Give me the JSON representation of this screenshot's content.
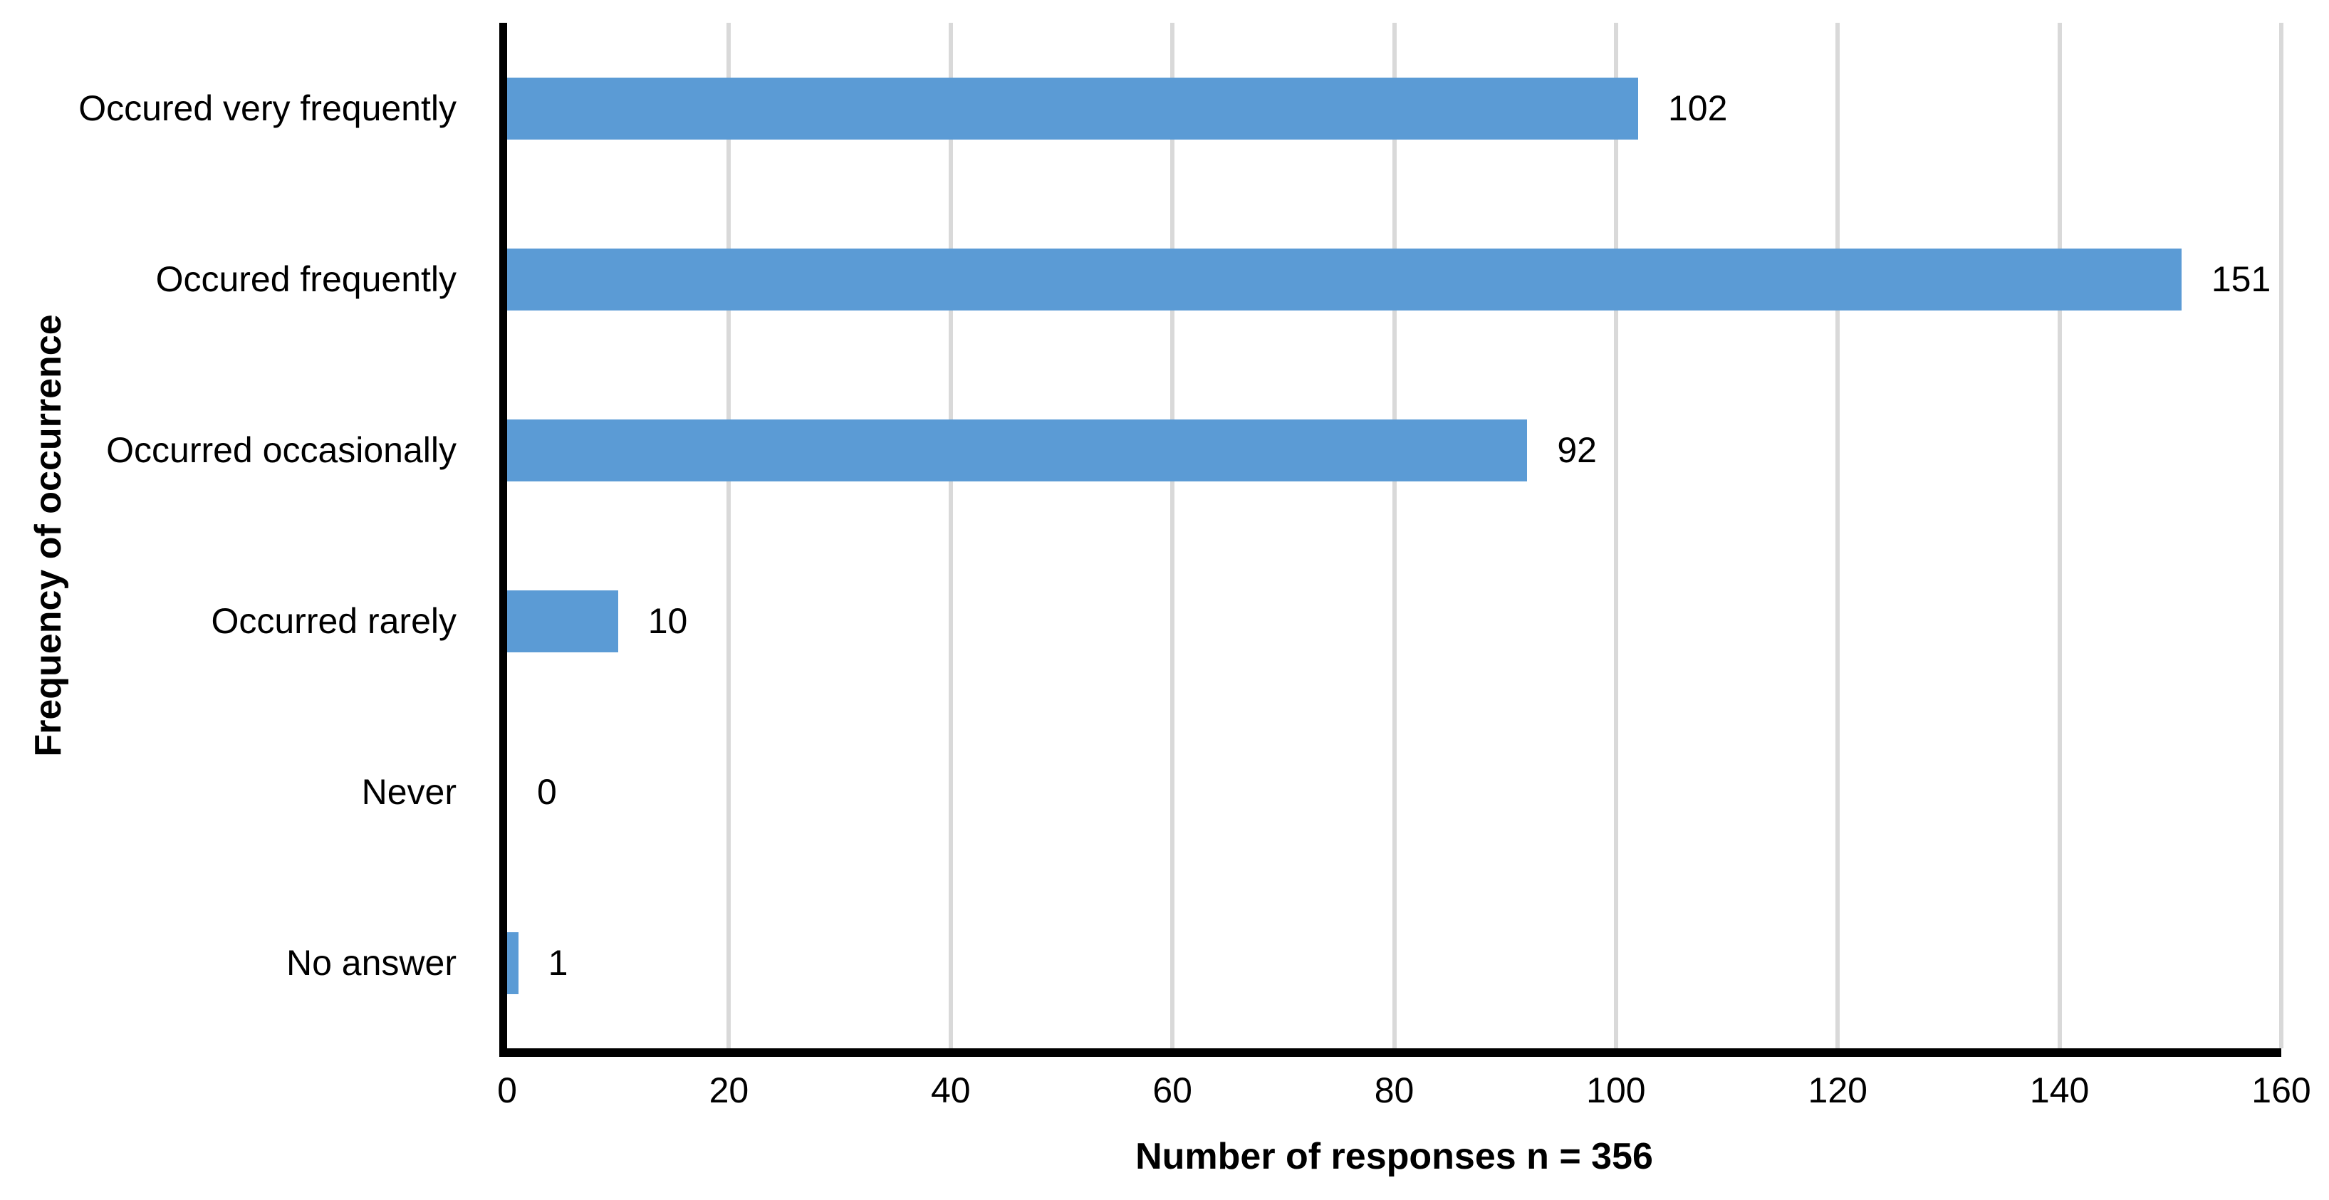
{
  "chart_data": {
    "type": "bar",
    "orientation": "horizontal",
    "categories": [
      "Occured very frequently",
      "Occured frequently",
      "Occurred occasionally",
      "Occurred rarely",
      "Never",
      "No answer"
    ],
    "values": [
      102,
      151,
      92,
      10,
      0,
      1
    ],
    "title": "",
    "xlabel": "Number of responses n = 356",
    "ylabel": "Frequency of occurrence",
    "xlim": [
      0,
      160
    ],
    "x_ticks": [
      0,
      20,
      40,
      60,
      80,
      100,
      120,
      140,
      160
    ],
    "grid": true,
    "legend": "none",
    "bar_color": "#5B9BD5",
    "gridline_color": "#D9D9D9",
    "axis_color": "#000000",
    "text_color": "#000000",
    "background_color": "#FFFFFF"
  }
}
